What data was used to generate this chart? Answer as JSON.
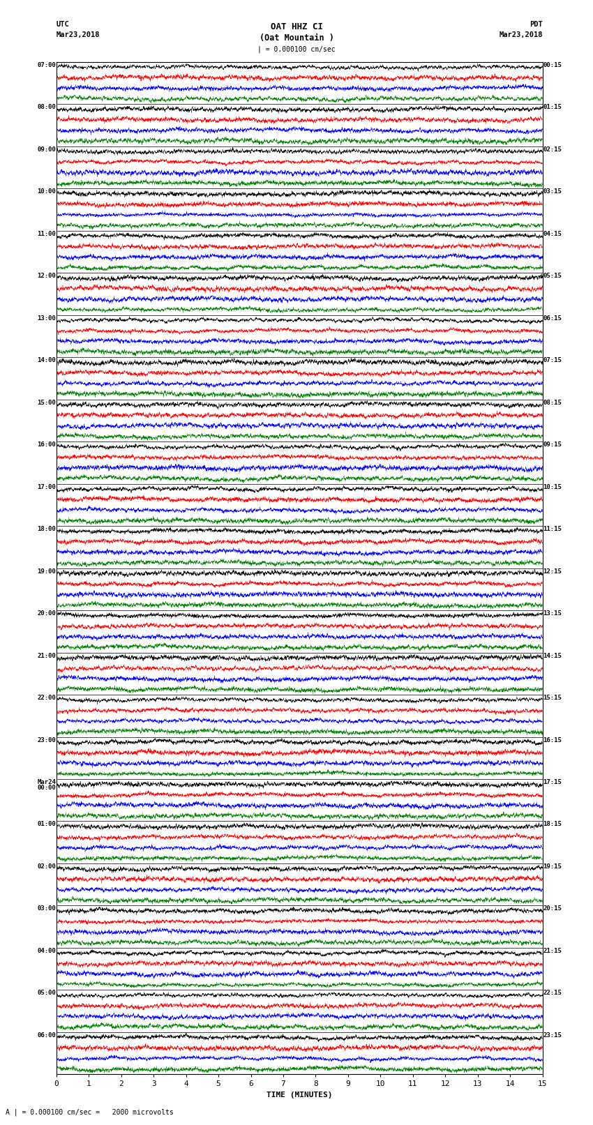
{
  "title_line1": "OAT HHZ CI",
  "title_line2": "(Oat Mountain )",
  "scale_label": "| = 0.000100 cm/sec",
  "utc_label_line1": "UTC",
  "utc_label_line2": "Mar23,2018",
  "pdt_label_line1": "PDT",
  "pdt_label_line2": "Mar23,2018",
  "bottom_label": "A | = 0.000100 cm/sec =   2000 microvolts",
  "xlabel": "TIME (MINUTES)",
  "left_times_utc": [
    "07:00",
    "08:00",
    "09:00",
    "10:00",
    "11:00",
    "12:00",
    "13:00",
    "14:00",
    "15:00",
    "16:00",
    "17:00",
    "18:00",
    "19:00",
    "20:00",
    "21:00",
    "22:00",
    "23:00",
    "Mar24\n00:00",
    "01:00",
    "02:00",
    "03:00",
    "04:00",
    "05:00",
    "06:00"
  ],
  "right_times_pdt": [
    "00:15",
    "01:15",
    "02:15",
    "03:15",
    "04:15",
    "05:15",
    "06:15",
    "07:15",
    "08:15",
    "09:15",
    "10:15",
    "11:15",
    "12:15",
    "13:15",
    "14:15",
    "15:15",
    "16:15",
    "17:15",
    "18:15",
    "19:15",
    "20:15",
    "21:15",
    "22:15",
    "23:15"
  ],
  "num_rows": 24,
  "minutes_per_row": 15,
  "traces_per_row": 4,
  "colors": [
    "black",
    "red",
    "blue",
    "green"
  ],
  "bg_color": "#ffffff",
  "plot_bg": "#ffffff",
  "fig_width": 8.5,
  "fig_height": 16.13,
  "dpi": 100,
  "amplitude": 0.42,
  "x_ticks": [
    0,
    1,
    2,
    3,
    4,
    5,
    6,
    7,
    8,
    9,
    10,
    11,
    12,
    13,
    14,
    15
  ],
  "noise_seed": 42,
  "samples_per_row": 4500
}
